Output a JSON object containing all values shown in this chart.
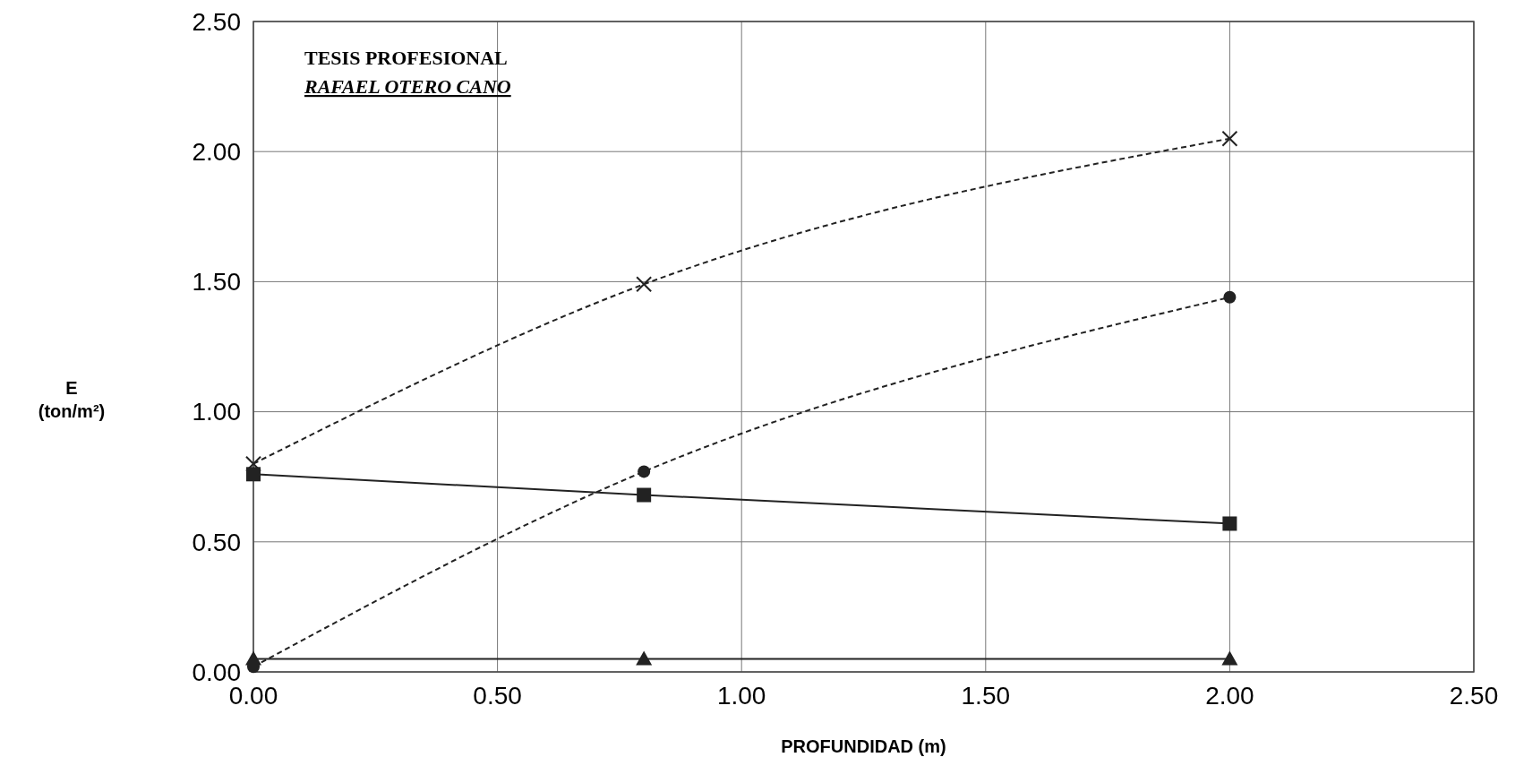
{
  "chart_data": {
    "type": "line",
    "xlabel": "PROFUNDIDAD (m)",
    "ylabel": "E\n(ton/m²)",
    "x": [
      0,
      0.8,
      2.0
    ],
    "series": [
      {
        "color": "#222222",
        "values": [
          0.8,
          1.49,
          2.05
        ],
        "marker": "cross",
        "line_style": "dashed"
      },
      {
        "color": "#222222",
        "values": [
          0.02,
          0.77,
          1.44
        ],
        "marker": "circle",
        "line_style": "dashed"
      },
      {
        "color": "#222222",
        "values": [
          0.76,
          0.68,
          0.57
        ],
        "marker": "square",
        "line_style": "solid"
      },
      {
        "color": "#222222",
        "values": [
          0.05,
          0.05,
          0.05
        ],
        "marker": "triangle",
        "line_style": "solid"
      }
    ],
    "xlim": [
      0,
      2.5
    ],
    "xticks": [
      {
        "value": 0,
        "label": "0.00"
      },
      {
        "value": 0.5,
        "label": "0.50"
      },
      {
        "value": 1,
        "label": "1.00"
      },
      {
        "value": 1.5,
        "label": "1.50"
      },
      {
        "value": 2,
        "label": "2.00"
      },
      {
        "value": 2.5,
        "label": "2.50"
      }
    ],
    "ylim": [
      0,
      2.5
    ],
    "yticks": [
      {
        "value": 0,
        "label": "0.00"
      },
      {
        "value": 0.5,
        "label": "0.50"
      },
      {
        "value": 1,
        "label": "1.00"
      },
      {
        "value": 1.5,
        "label": "1.50"
      },
      {
        "value": 2,
        "label": "2.00"
      },
      {
        "value": 2.5,
        "label": "2.50"
      }
    ],
    "grid": true,
    "annotations": [
      "TESIS PROFESIONAL",
      "RAFAEL OTERO CANO"
    ]
  }
}
